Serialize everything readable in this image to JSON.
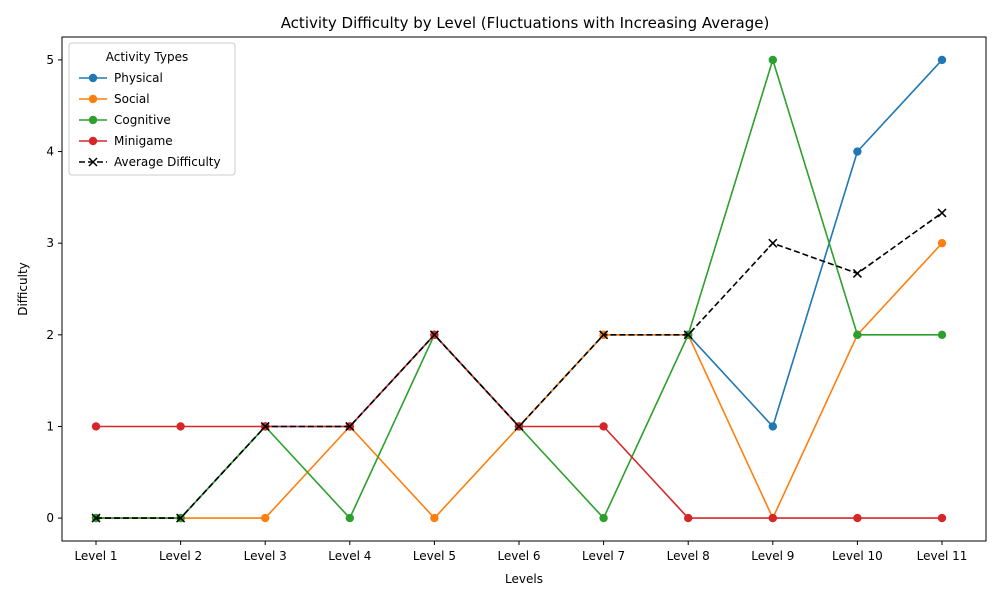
{
  "chart_data": {
    "type": "line",
    "title": "Activity Difficulty by Level (Fluctuations with Increasing Average)",
    "xlabel": "Levels",
    "ylabel": "Difficulty",
    "categories": [
      "Level 1",
      "Level 2",
      "Level 3",
      "Level 4",
      "Level 5",
      "Level 6",
      "Level 7",
      "Level 8",
      "Level 9",
      "Level 10",
      "Level 11"
    ],
    "ylim": [
      -0.25,
      5.25
    ],
    "yticks": [
      0,
      1,
      2,
      3,
      4,
      5
    ],
    "grid": false,
    "legend_title": "Activity Types",
    "legend_position": "top-left",
    "series": [
      {
        "name": "Physical",
        "color": "#1f77b4",
        "marker": "circle",
        "dashed": false,
        "values": [
          0,
          0,
          1,
          1,
          2,
          1,
          2,
          2,
          1,
          4,
          5
        ]
      },
      {
        "name": "Social",
        "color": "#ff7f0e",
        "marker": "circle",
        "dashed": false,
        "values": [
          0,
          0,
          0,
          1,
          0,
          1,
          2,
          2,
          0,
          2,
          3
        ]
      },
      {
        "name": "Cognitive",
        "color": "#2ca02c",
        "marker": "circle",
        "dashed": false,
        "values": [
          0,
          0,
          1,
          0,
          2,
          1,
          0,
          2,
          5,
          2,
          2
        ]
      },
      {
        "name": "Minigame",
        "color": "#d62728",
        "marker": "circle",
        "dashed": false,
        "values": [
          1,
          1,
          1,
          1,
          2,
          1,
          1,
          0,
          0,
          0,
          0
        ]
      },
      {
        "name": "Average Difficulty",
        "color": "#000000",
        "marker": "x",
        "dashed": true,
        "values": [
          0,
          0,
          1,
          1,
          2,
          1,
          2,
          2,
          3,
          2.67,
          3.33
        ]
      }
    ]
  }
}
